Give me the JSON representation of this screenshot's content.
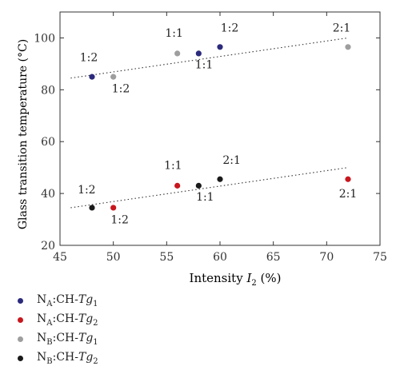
{
  "chart_data": {
    "type": "scatter",
    "xlabel_text": "Intensity ",
    "xlabel_var": "I",
    "xlabel_sub": "2",
    "xlabel_unit": " (%)",
    "ylabel": "Glass transition temperature (°C)",
    "xlim": [
      45,
      75
    ],
    "ylim": [
      20,
      110
    ],
    "xticks": [
      45,
      50,
      55,
      60,
      65,
      70,
      75
    ],
    "yticks": [
      20,
      40,
      60,
      80,
      100
    ],
    "grid": false,
    "legend_position": "bottom-left outside",
    "series": [
      {
        "id": "na_tg1",
        "color": "#2b2a7c",
        "name_pre": "N",
        "name_sub1": "A",
        "name_mid": ":CH-",
        "name_var": "Tg",
        "name_sub2": "1",
        "points": [
          {
            "x": 48,
            "y": 85
          },
          {
            "x": 58,
            "y": 94
          },
          {
            "x": 60,
            "y": 96.5
          }
        ]
      },
      {
        "id": "na_tg2",
        "color": "#c8171e",
        "name_pre": "N",
        "name_sub1": "A",
        "name_mid": ":CH-",
        "name_var": "Tg",
        "name_sub2": "2",
        "points": [
          {
            "x": 50,
            "y": 34.5
          },
          {
            "x": 56,
            "y": 43
          },
          {
            "x": 72,
            "y": 45.5
          }
        ]
      },
      {
        "id": "nb_tg1",
        "color": "#9e9e9e",
        "name_pre": "N",
        "name_sub1": "B",
        "name_mid": ":CH-",
        "name_var": "Tg",
        "name_sub2": "1",
        "points": [
          {
            "x": 50,
            "y": 85
          },
          {
            "x": 56,
            "y": 94
          },
          {
            "x": 72,
            "y": 96.5
          }
        ]
      },
      {
        "id": "nb_tg2",
        "color": "#1a1a1a",
        "name_pre": "N",
        "name_sub1": "B",
        "name_mid": ":CH-",
        "name_var": "Tg",
        "name_sub2": "2",
        "points": [
          {
            "x": 48,
            "y": 34.5
          },
          {
            "x": 58,
            "y": 43
          },
          {
            "x": 60,
            "y": 45.5
          }
        ]
      }
    ],
    "trendlines": [
      {
        "from": [
          46,
          84.5
        ],
        "to": [
          72,
          100
        ]
      },
      {
        "from": [
          46,
          34.5
        ],
        "to": [
          72,
          50
        ]
      }
    ],
    "annotations": [
      {
        "text": "1:2",
        "x": 47.7,
        "y": 91
      },
      {
        "text": "1:2",
        "x": 50.7,
        "y": 79
      },
      {
        "text": "1:1",
        "x": 55.7,
        "y": 100.5
      },
      {
        "text": "1:1",
        "x": 58.5,
        "y": 88.3
      },
      {
        "text": "1:2",
        "x": 60.9,
        "y": 102.5
      },
      {
        "text": "2:1",
        "x": 71.4,
        "y": 102.5
      },
      {
        "text": "1:2",
        "x": 47.5,
        "y": 40
      },
      {
        "text": "1:2",
        "x": 50.6,
        "y": 28.5
      },
      {
        "text": "1:1",
        "x": 55.6,
        "y": 49.5
      },
      {
        "text": "1:1",
        "x": 58.6,
        "y": 37.2
      },
      {
        "text": "2:1",
        "x": 61.1,
        "y": 51.5
      },
      {
        "text": "2:1",
        "x": 72,
        "y": 38.5
      }
    ]
  }
}
